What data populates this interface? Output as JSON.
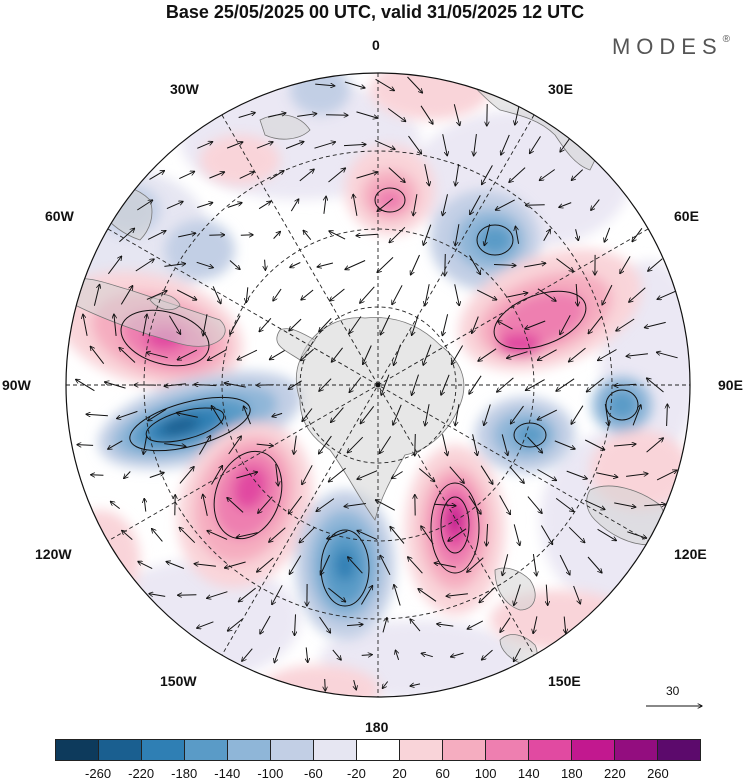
{
  "title": "Base 25/05/2025 00 UTC, valid 31/05/2025 12 UTC",
  "brand": {
    "name": "MODES",
    "mark": "®"
  },
  "longitude_labels": {
    "top": "0",
    "n30e": "30E",
    "n60e": "60E",
    "e90": "90E",
    "s120e": "120E",
    "s150e": "150E",
    "bottom": "180",
    "s150w": "150W",
    "s120w": "120W",
    "w90": "90W",
    "n60w": "60W",
    "n30w": "30W"
  },
  "reference_vector": {
    "label": "30"
  },
  "colorbar": {
    "colors": [
      "#0d3a5c",
      "#1a5f90",
      "#2f7fb4",
      "#5a9bc7",
      "#8fb6d8",
      "#c2cfe5",
      "#e6e6f2",
      "#ffffff",
      "#f9d4d9",
      "#f5adc0",
      "#ee7fb0",
      "#e14aa1",
      "#c2188f",
      "#930d7f",
      "#5c0a6c"
    ],
    "tick_labels": [
      "-260",
      "-220",
      "-180",
      "-140",
      "-100",
      "-60",
      "-20",
      "20",
      "60",
      "100",
      "140",
      "180",
      "220",
      "260"
    ]
  }
}
